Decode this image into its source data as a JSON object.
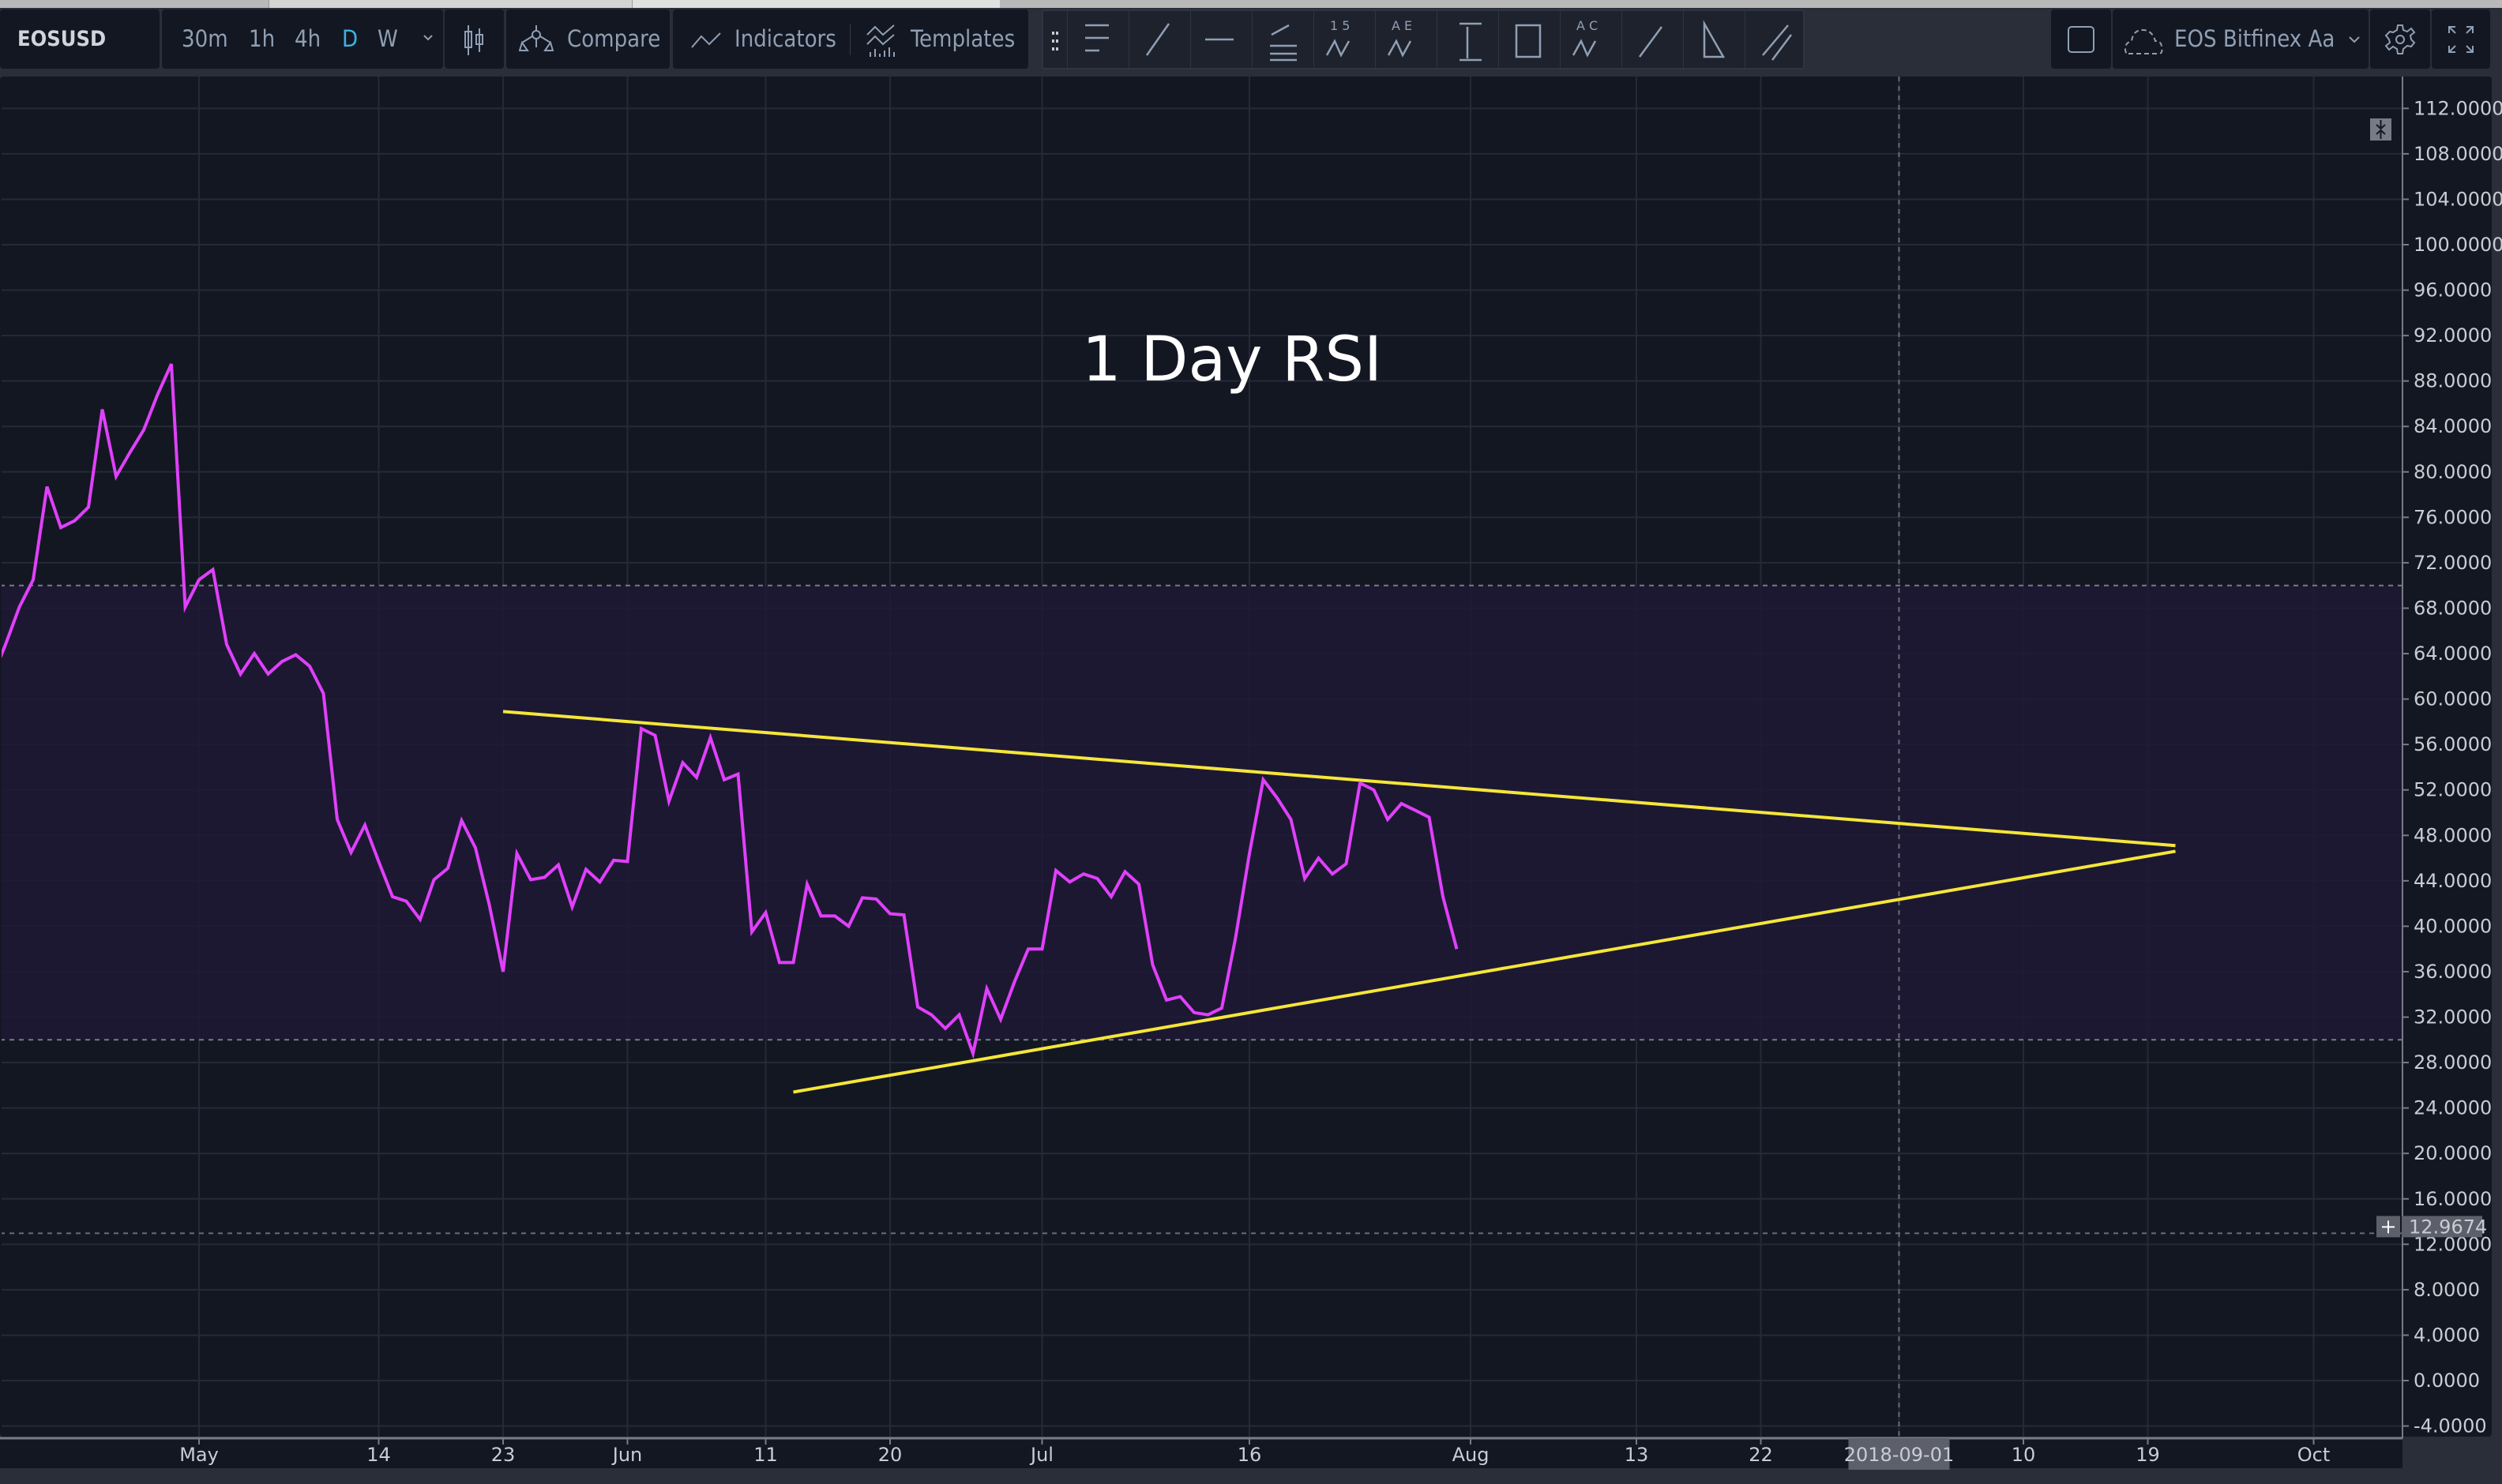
{
  "toolbar": {
    "symbol": "EOSUSD",
    "intervals": [
      {
        "label": "30m",
        "active": false
      },
      {
        "label": "1h",
        "active": false
      },
      {
        "label": "4h",
        "active": false
      },
      {
        "label": "D",
        "active": true
      },
      {
        "label": "W",
        "active": false
      }
    ],
    "compare_label": "Compare",
    "indicators_label": "Indicators",
    "templates_label": "Templates",
    "layout_name": "EOS Bitfinex Aa",
    "drawing_tools": [
      {
        "icon": "horizontal-lines-icon"
      },
      {
        "icon": "trend-line-icon"
      },
      {
        "icon": "horizontal-ray-icon"
      },
      {
        "icon": "fib-retracement-icon"
      },
      {
        "icon": "elliott-wave-15-icon",
        "text": "1 5"
      },
      {
        "icon": "elliott-wave-ae-icon",
        "text": "A E"
      },
      {
        "icon": "price-range-icon"
      },
      {
        "icon": "rectangle-icon"
      },
      {
        "icon": "abcd-pattern-icon",
        "text": "A C"
      },
      {
        "icon": "arrow-icon"
      },
      {
        "icon": "triangle-icon"
      },
      {
        "icon": "parallel-channel-icon"
      }
    ],
    "accent_color": "#3bb3e4"
  },
  "chart": {
    "annotation_text": "1 Day RSI",
    "current_value_label": "12.9674",
    "crosshair_date_label": "2018-09-01",
    "colors": {
      "rsi_line": "#e040fb",
      "trend_lines": "#f5e63a",
      "band": "#1e1935",
      "background": "#131722"
    }
  },
  "chart_data": {
    "type": "line",
    "title": "",
    "xlabel": "",
    "ylabel": "",
    "ylim": [
      -4,
      112
    ],
    "grid": true,
    "reference_lines": [
      70,
      30
    ],
    "shaded_band": [
      30,
      70
    ],
    "current_value": 12.9674,
    "crosshair_x": "2018-09-01",
    "y_ticks": [
      "112.0000",
      "108.0000",
      "104.0000",
      "100.0000",
      "96.0000",
      "92.0000",
      "88.0000",
      "84.0000",
      "80.0000",
      "76.0000",
      "72.0000",
      "68.0000",
      "64.0000",
      "60.0000",
      "56.0000",
      "52.0000",
      "48.0000",
      "44.0000",
      "40.0000",
      "36.0000",
      "32.0000",
      "28.0000",
      "24.0000",
      "20.0000",
      "16.0000",
      "12.0000",
      "8.0000",
      "4.0000",
      "0.0000",
      "-4.0000"
    ],
    "x_ticks": [
      {
        "label": "May",
        "date": "2018-05-01"
      },
      {
        "label": "14",
        "date": "2018-05-14"
      },
      {
        "label": "23",
        "date": "2018-05-23"
      },
      {
        "label": "Jun",
        "date": "2018-06-01"
      },
      {
        "label": "11",
        "date": "2018-06-11"
      },
      {
        "label": "20",
        "date": "2018-06-20"
      },
      {
        "label": "Jul",
        "date": "2018-07-01"
      },
      {
        "label": "16",
        "date": "2018-07-16"
      },
      {
        "label": "Aug",
        "date": "2018-08-01"
      },
      {
        "label": "13",
        "date": "2018-08-13"
      },
      {
        "label": "22",
        "date": "2018-08-22"
      },
      {
        "label": "2018-09-01",
        "date": "2018-09-01"
      },
      {
        "label": "10",
        "date": "2018-09-10"
      },
      {
        "label": "19",
        "date": "2018-09-19"
      },
      {
        "label": "Oct",
        "date": "2018-10-01"
      }
    ],
    "series": [
      {
        "x": [
          "2018-04-16",
          "2018-04-17",
          "2018-04-18",
          "2018-04-19",
          "2018-04-20",
          "2018-04-21",
          "2018-04-22",
          "2018-04-23",
          "2018-04-24",
          "2018-04-25",
          "2018-04-26",
          "2018-04-27",
          "2018-04-28",
          "2018-04-29",
          "2018-04-30",
          "2018-05-01",
          "2018-05-02",
          "2018-05-03",
          "2018-05-04",
          "2018-05-05",
          "2018-05-06",
          "2018-05-07",
          "2018-05-08",
          "2018-05-09",
          "2018-05-10",
          "2018-05-11",
          "2018-05-12",
          "2018-05-13",
          "2018-05-14",
          "2018-05-15",
          "2018-05-16",
          "2018-05-17",
          "2018-05-18",
          "2018-05-19",
          "2018-05-20",
          "2018-05-21",
          "2018-05-22",
          "2018-05-23",
          "2018-05-24",
          "2018-05-25",
          "2018-05-26",
          "2018-05-27",
          "2018-05-28",
          "2018-05-29",
          "2018-05-30",
          "2018-05-31",
          "2018-06-01",
          "2018-06-02",
          "2018-06-03",
          "2018-06-04",
          "2018-06-05",
          "2018-06-06",
          "2018-06-07",
          "2018-06-08",
          "2018-06-09",
          "2018-06-10",
          "2018-06-11",
          "2018-06-12",
          "2018-06-13",
          "2018-06-14",
          "2018-06-15",
          "2018-06-16",
          "2018-06-17",
          "2018-06-18",
          "2018-06-19",
          "2018-06-20",
          "2018-06-21",
          "2018-06-22",
          "2018-06-23",
          "2018-06-24",
          "2018-06-25",
          "2018-06-26",
          "2018-06-27",
          "2018-06-28",
          "2018-06-29",
          "2018-06-30",
          "2018-07-01",
          "2018-07-02",
          "2018-07-03",
          "2018-07-04",
          "2018-07-05",
          "2018-07-06",
          "2018-07-07",
          "2018-07-08",
          "2018-07-09",
          "2018-07-10",
          "2018-07-11",
          "2018-07-12",
          "2018-07-13",
          "2018-07-14",
          "2018-07-15",
          "2018-07-16",
          "2018-07-17",
          "2018-07-18",
          "2018-07-19",
          "2018-07-20",
          "2018-07-21",
          "2018-07-22",
          "2018-07-23",
          "2018-07-24",
          "2018-07-25",
          "2018-07-26",
          "2018-07-27",
          "2018-07-28",
          "2018-07-29",
          "2018-07-30",
          "2018-07-31"
        ],
        "y": [
          61.8,
          64.8,
          68.1,
          70.5,
          78.7,
          75.1,
          75.7,
          76.9,
          85.5,
          79.6,
          81.7,
          83.7,
          86.8,
          89.5,
          68.1,
          70.5,
          71.4,
          64.8,
          62.2,
          64.0,
          62.2,
          63.3,
          63.9,
          62.9,
          60.5,
          49.4,
          46.5,
          48.9,
          45.7,
          42.6,
          42.2,
          40.6,
          44.1,
          45.1,
          49.3,
          46.9,
          41.9,
          36.0,
          46.4,
          44.1,
          44.3,
          45.4,
          41.7,
          45.0,
          43.9,
          45.8,
          45.7,
          57.4,
          56.8,
          51.0,
          54.4,
          53.1,
          56.6,
          52.9,
          53.4,
          39.5,
          41.2,
          36.8,
          36.8,
          43.7,
          40.9,
          40.9,
          40.0,
          42.5,
          42.4,
          41.1,
          41.0,
          32.9,
          32.2,
          31.0,
          32.2,
          28.8,
          34.5,
          31.8,
          35.1,
          38.0,
          38.0,
          44.9,
          43.9,
          44.6,
          44.2,
          42.6,
          44.8,
          43.7,
          36.6,
          33.5,
          33.8,
          32.4,
          32.2,
          32.8,
          39.0,
          46.4,
          52.9,
          51.3,
          49.4,
          44.2,
          46.0,
          44.6,
          45.5,
          52.6,
          52.0,
          49.4,
          50.8,
          50.2,
          49.6,
          42.6,
          38.0
        ]
      }
    ],
    "trend_lines": [
      {
        "from": {
          "x": "2018-05-23",
          "y": 58.9
        },
        "to": {
          "x": "2018-09-21",
          "y": 47.1
        }
      },
      {
        "from": {
          "x": "2018-06-13",
          "y": 25.4
        },
        "to": {
          "x": "2018-09-21",
          "y": 46.6
        }
      }
    ]
  }
}
